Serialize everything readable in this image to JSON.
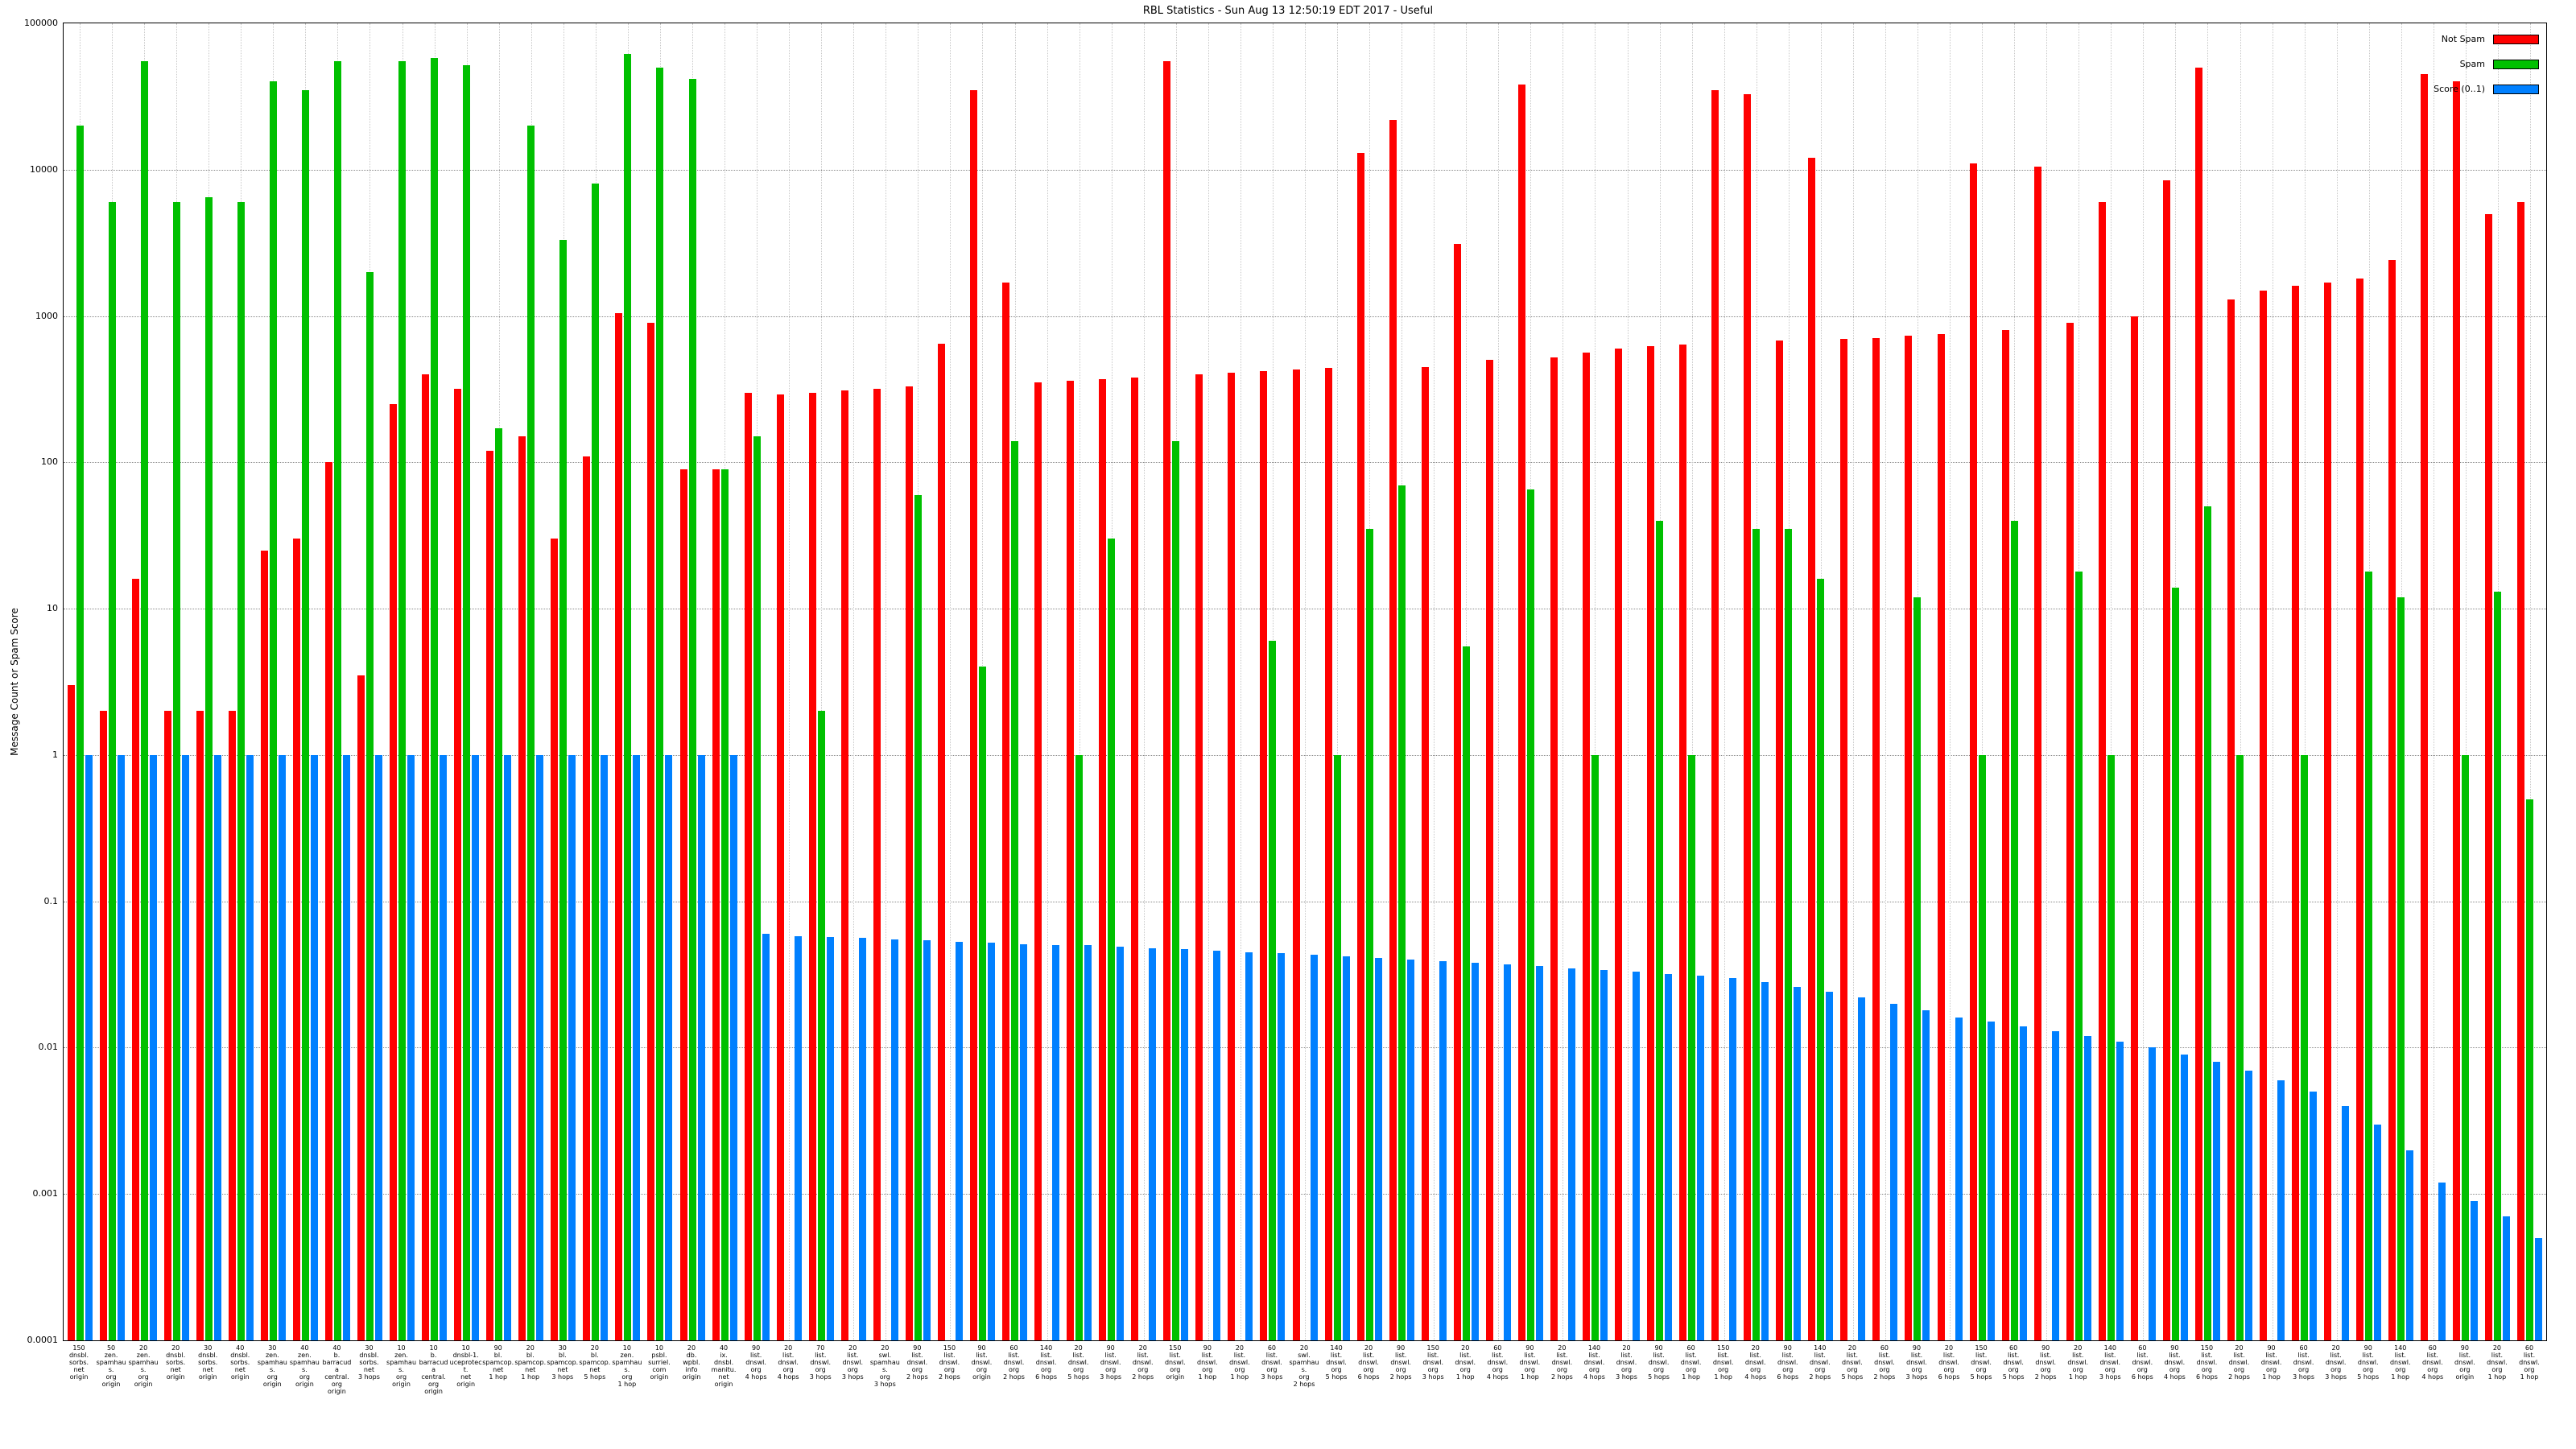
{
  "title": "RBL Statistics - Sun Aug 13 12:50:19 EDT 2017 - Useful",
  "legend": [
    {
      "label": "Not Spam",
      "color": "#ff0000"
    },
    {
      "label": "Spam",
      "color": "#00c000"
    },
    {
      "label": "Score (0..1)",
      "color": "#0080ff"
    }
  ],
  "chart_data": {
    "type": "bar",
    "title": "RBL Statistics - Sun Aug 13 12:50:19 EDT 2017 - Useful",
    "xlabel": "",
    "ylabel": "Message Count or Spam Score",
    "y_scale": "log",
    "ylim": [
      0.0001,
      100000
    ],
    "yticks": [
      "100000",
      "10000",
      "1000",
      "100",
      "10",
      "1",
      "0.1",
      "0.01",
      "0.001",
      "0.0001"
    ],
    "grid": true,
    "legend_position": "top-right",
    "categories": [
      "150\ndnsbl.\nsorbs.\nnet\norigin",
      "50\nzen.\nspamhaus.\norg\norigin",
      "20\nzen.\nspamhaus.\norg\norigin",
      "20\ndnsbl.\nsorbs.\nnet\norigin",
      "30\ndnsbl.\nsorbs.\nnet\norigin",
      "40\ndnsbl.\nsorbs.\nnet\norigin",
      "30\nzen.\nspamhaus.\norg\norigin",
      "40\nzen.\nspamhaus.\norg\norigin",
      "40\nb.\nbarracuda\ncentral.\norg\norigin",
      "30\ndnsbl.\nsorbs.\nnet\n3 hops",
      "10\nzen.\nspamhaus.\norg\norigin",
      "10\nb.\nbarracuda\ncentral.\norg\norigin",
      "10\ndnsbl-1.\nuceprotect.\nnet\norigin",
      "90\nbl.\nspamcop.\nnet\n1 hop",
      "20\nbl.\nspamcop.\nnet\n1 hop",
      "30\nbl.\nspamcop.\nnet\n3 hops",
      "20\nbl.\nspamcop.\nnet\n5 hops",
      "10\nzen.\nspamhaus.\norg\n1 hop",
      "10\npsbl.\nsurriel.\ncom\norigin",
      "20\ndb.\nwpbl.\ninfo\norigin",
      "40\nix.\ndnsbl.\nmanitu.\nnet\norigin",
      "90\nlist.\ndnswl.\norg\n4 hops",
      "20\nlist.\ndnswl.\norg\n4 hops",
      "70\nlist.\ndnswl.\norg\n3 hops",
      "20\nlist.\ndnswl.\norg\n3 hops",
      "20\nswl.\nspamhaus.\norg\n3 hops",
      "90\nlist.\ndnswl.\norg\n2 hops",
      "150\nlist.\ndnswl.\norg\n2 hops",
      "90\nlist.\ndnswl.\norg\norigin",
      "60\nlist.\ndnswl.\norg\n2 hops",
      "140\nlist.\ndnswl.\norg\n6 hops",
      "20\nlist.\ndnswl.\norg\n5 hops",
      "90\nlist.\ndnswl.\norg\n3 hops",
      "20\nlist.\ndnswl.\norg\n2 hops",
      "150\nlist.\ndnswl.\norg\norigin",
      "90\nlist.\ndnswl.\norg\n1 hop",
      "20\nlist.\ndnswl.\norg\n1 hop",
      "60\nlist.\ndnswl.\norg\n3 hops",
      "20\nswl.\nspamhaus.\norg\n2 hops",
      "140\nlist.\ndnswl.\norg\n5 hops",
      "20\nlist.\ndnswl.\norg\n6 hops",
      "90\nlist.\ndnswl.\norg\n2 hops",
      "150\nlist.\ndnswl.\norg\n3 hops",
      "20\nlist.\ndnswl.\norg\n1 hop",
      "60\nlist.\ndnswl.\norg\n4 hops",
      "90\nlist.\ndnswl.\norg\n1 hop",
      "20\nlist.\ndnswl.\norg\n2 hops",
      "140\nlist.\ndnswl.\norg\n4 hops",
      "20\nlist.\ndnswl.\norg\n3 hops",
      "90\nlist.\ndnswl.\norg\n5 hops",
      "60\nlist.\ndnswl.\norg\n1 hop",
      "150\nlist.\ndnswl.\norg\n1 hop",
      "20\nlist.\ndnswl.\norg\n4 hops",
      "90\nlist.\ndnswl.\norg\n6 hops",
      "140\nlist.\ndnswl.\norg\n2 hops",
      "20\nlist.\ndnswl.\norg\n5 hops",
      "60\nlist.\ndnswl.\norg\n2 hops",
      "90\nlist.\ndnswl.\norg\n3 hops",
      "20\nlist.\ndnswl.\norg\n6 hops",
      "150\nlist.\ndnswl.\norg\n5 hops",
      "60\nlist.\ndnswl.\norg\n5 hops",
      "90\nlist.\ndnswl.\norg\n2 hops",
      "20\nlist.\ndnswl.\norg\n1 hop",
      "140\nlist.\ndnswl.\norg\n3 hops",
      "60\nlist.\ndnswl.\norg\n6 hops",
      "90\nlist.\ndnswl.\norg\n4 hops",
      "150\nlist.\ndnswl.\norg\n6 hops",
      "20\nlist.\ndnswl.\norg\n2 hops",
      "90\nlist.\ndnswl.\norg\n1 hop",
      "60\nlist.\ndnswl.\norg\n3 hops",
      "20\nlist.\ndnswl.\norg\n3 hops",
      "90\nlist.\ndnswl.\norg\n5 hops",
      "140\nlist.\ndnswl.\norg\n1 hop",
      "60\nlist.\ndnswl.\norg\n4 hops",
      "90\nlist.\ndnswl.\norg\norigin",
      "20\nlist.\ndnswl.\norg\n1 hop",
      "60\nlist.\ndnswl.\norg\n1 hop"
    ],
    "series": [
      {
        "name": "Not Spam",
        "color": "#ff0000",
        "values": [
          3,
          2,
          16,
          2,
          2,
          2,
          25,
          30,
          100,
          3.5,
          250,
          400,
          320,
          120,
          150,
          30,
          110,
          1050,
          900,
          90,
          90,
          300,
          290,
          300,
          310,
          320,
          330,
          650,
          35000,
          1700,
          350,
          360,
          370,
          380,
          55000,
          400,
          410,
          420,
          430,
          440,
          13000,
          22000,
          450,
          3100,
          500,
          38000,
          520,
          560,
          600,
          620,
          640,
          35000,
          33000,
          680,
          12000,
          700,
          710,
          730,
          750,
          11000,
          800,
          10500,
          900,
          6000,
          1000,
          8500,
          50000,
          1300,
          1500,
          1600,
          1700,
          1800,
          2400,
          45000,
          40000,
          5000,
          6000
        ]
      },
      {
        "name": "Spam",
        "color": "#00c000",
        "values": [
          20000,
          6000,
          55000,
          6000,
          6500,
          6000,
          40000,
          35000,
          55000,
          2000,
          55000,
          58000,
          52000,
          170,
          20000,
          3300,
          8000,
          62000,
          50000,
          42000,
          90,
          150,
          0,
          2,
          0,
          0,
          60,
          0,
          4,
          140,
          0,
          1,
          30,
          0,
          140,
          0,
          0,
          6,
          0,
          1,
          35,
          70,
          0,
          5.5,
          0,
          65,
          0,
          1,
          0,
          40,
          1,
          0,
          35,
          35,
          16,
          0,
          0,
          12,
          0,
          1,
          40,
          0,
          18,
          1,
          0,
          14,
          50,
          1,
          0,
          1,
          0,
          18,
          12,
          0,
          1,
          13,
          0.5
        ]
      },
      {
        "name": "Score (0..1)",
        "color": "#0080ff",
        "values": [
          1,
          1,
          1,
          1,
          1,
          1,
          1,
          1,
          1,
          1,
          1,
          1,
          1,
          1,
          1,
          1,
          1,
          1,
          1,
          1,
          1,
          0.06,
          0.058,
          0.057,
          0.056,
          0.055,
          0.054,
          0.053,
          0.052,
          0.051,
          0.05,
          0.05,
          0.049,
          0.048,
          0.047,
          0.046,
          0.045,
          0.044,
          0.043,
          0.042,
          0.041,
          0.04,
          0.039,
          0.038,
          0.037,
          0.036,
          0.035,
          0.034,
          0.033,
          0.032,
          0.031,
          0.03,
          0.028,
          0.026,
          0.024,
          0.022,
          0.02,
          0.018,
          0.016,
          0.015,
          0.014,
          0.013,
          0.012,
          0.011,
          0.01,
          0.009,
          0.008,
          0.007,
          0.006,
          0.005,
          0.004,
          0.003,
          0.002,
          0.0012,
          0.0009,
          0.0007,
          0.0005
        ]
      }
    ]
  }
}
